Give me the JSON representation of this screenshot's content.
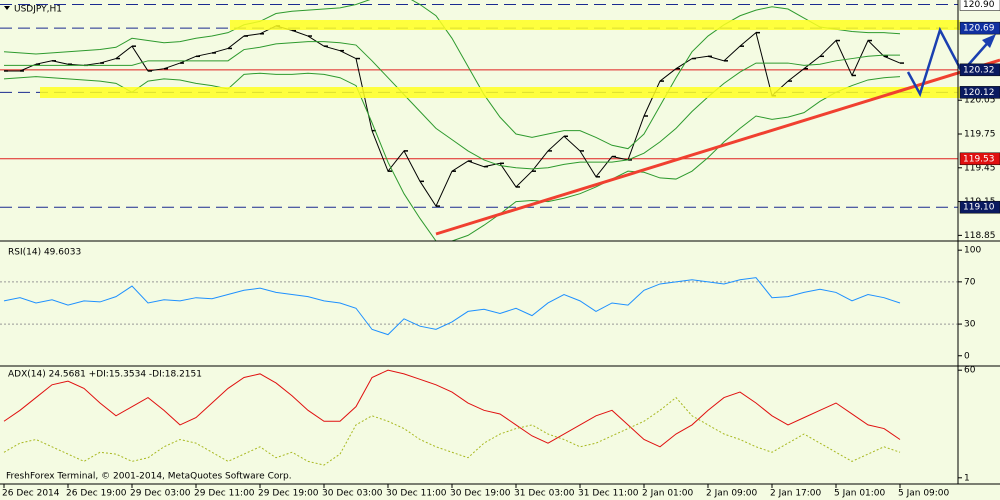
{
  "chart_data": [
    {
      "type": "line",
      "title": "USDJPY,H1",
      "footer": "FreshForex Terminal, © 2001-2014, MetaQuotes Software Corp.",
      "categories": [
        "26 Dec 2014",
        null,
        null,
        null,
        "26 Dec 19:00",
        null,
        null,
        null,
        "29 Dec 03:00",
        null,
        null,
        null,
        "29 Dec 11:00",
        null,
        null,
        null,
        "29 Dec 19:00",
        null,
        null,
        null,
        "30 Dec 03:00",
        null,
        null,
        null,
        "30 Dec 11:00",
        null,
        null,
        null,
        "30 Dec 19:00",
        null,
        null,
        null,
        "31 Dec 03:00",
        null,
        null,
        null,
        "31 Dec 11:00",
        null,
        null,
        null,
        "2 Jan 01:00",
        null,
        null,
        null,
        "2 Jan 09:00",
        null,
        null,
        null,
        "2 Jan 17:00",
        null,
        null,
        null,
        "5 Jan 01:00",
        null,
        null,
        null,
        "5 Jan 09:00"
      ],
      "ylim": [
        118.8,
        120.94
      ],
      "yticks": [
        120.05,
        119.75,
        119.45,
        119.15,
        118.85
      ],
      "levels": [
        {
          "value": 120.9,
          "label": "120.90",
          "color": "#ffffff",
          "text_color": "#000000",
          "style": "dashed"
        },
        {
          "value": 120.69,
          "color": "#1030a0",
          "text_color": "#ffffff",
          "style": "dashed"
        },
        {
          "value": 120.32,
          "color": "#0a1a60",
          "text_color": "#ffffff",
          "style": "solid-red"
        },
        {
          "value": 120.12,
          "color": "#0a1a60",
          "text_color": "#ffffff",
          "style": "dashed"
        },
        {
          "value": 119.53,
          "color": "#e01010",
          "text_color": "#ffffff",
          "style": "solid-red"
        },
        {
          "value": 119.1,
          "label": "119.10",
          "color": "#0a1a60",
          "text_color": "#ffffff",
          "style": "dashed"
        }
      ],
      "series": [
        {
          "color": "#000000",
          "style": "bars",
          "values": [
            120.31,
            120.31,
            120.37,
            120.4,
            120.37,
            120.36,
            120.38,
            120.42,
            120.53,
            120.31,
            120.33,
            120.38,
            120.44,
            120.47,
            120.51,
            120.62,
            120.64,
            120.71,
            120.67,
            120.62,
            120.53,
            120.49,
            120.42,
            119.78,
            119.42,
            119.6,
            119.33,
            119.11,
            119.42,
            119.51,
            119.46,
            119.49,
            119.28,
            119.42,
            119.6,
            119.73,
            119.6,
            119.37,
            119.55,
            119.52,
            119.91,
            120.22,
            120.33,
            120.42,
            120.44,
            120.4,
            120.53,
            120.65,
            120.09,
            120.22,
            120.33,
            120.44,
            120.58,
            120.27,
            120.58,
            120.44,
            120.38
          ]
        },
        {
          "color": "#2e9a2e",
          "style": "solid",
          "values": [
            120.48,
            120.47,
            120.46,
            120.47,
            120.48,
            120.49,
            120.5,
            120.52,
            120.6,
            120.58,
            120.56,
            120.57,
            120.6,
            120.62,
            120.65,
            120.72,
            120.75,
            120.82,
            120.84,
            120.85,
            120.86,
            120.87,
            120.9,
            120.95,
            121.0,
            120.98,
            120.9,
            120.8,
            120.6,
            120.35,
            120.1,
            119.9,
            119.75,
            119.72,
            119.75,
            119.78,
            119.78,
            119.72,
            119.65,
            119.62,
            119.75,
            120.0,
            120.25,
            120.48,
            120.62,
            120.72,
            120.8,
            120.85,
            120.88,
            120.86,
            120.78,
            120.7,
            120.68,
            120.66,
            120.65,
            120.65,
            120.64
          ]
        },
        {
          "color": "#2e9a2e",
          "style": "solid",
          "values": [
            120.36,
            120.36,
            120.36,
            120.36,
            120.36,
            120.36,
            120.36,
            120.36,
            120.36,
            120.4,
            120.4,
            120.4,
            120.4,
            120.4,
            120.4,
            120.5,
            120.52,
            120.55,
            120.56,
            120.57,
            120.57,
            120.56,
            120.54,
            120.4,
            120.25,
            120.1,
            119.95,
            119.8,
            119.7,
            119.6,
            119.52,
            119.47,
            119.45,
            119.44,
            119.45,
            119.48,
            119.5,
            119.5,
            119.5,
            119.52,
            119.58,
            119.68,
            119.8,
            119.95,
            120.08,
            120.2,
            120.3,
            120.38,
            120.38,
            120.38,
            120.36,
            120.37,
            120.4,
            120.42,
            120.44,
            120.45,
            120.45
          ]
        },
        {
          "color": "#2e9a2e",
          "style": "solid",
          "values": [
            120.24,
            120.25,
            120.26,
            120.25,
            120.24,
            120.23,
            120.22,
            120.2,
            120.12,
            120.22,
            120.24,
            120.23,
            120.2,
            120.18,
            120.15,
            120.28,
            120.29,
            120.28,
            120.28,
            120.29,
            120.28,
            120.25,
            120.18,
            119.85,
            119.5,
            119.22,
            119.0,
            118.8,
            118.8,
            118.85,
            118.94,
            119.04,
            119.15,
            119.16,
            119.15,
            119.18,
            119.22,
            119.28,
            119.35,
            119.42,
            119.41,
            119.36,
            119.35,
            119.42,
            119.54,
            119.68,
            119.8,
            119.91,
            119.88,
            119.9,
            119.94,
            120.04,
            120.12,
            120.18,
            120.23,
            120.25,
            120.26
          ]
        }
      ]
    },
    {
      "type": "line",
      "title": "RSI(14) 49.6033",
      "ylim": [
        -9.7,
        108.7
      ],
      "yticks": [
        100,
        70,
        30,
        0
      ],
      "levels": [
        {
          "value": 70,
          "style": "dotted"
        },
        {
          "value": 30,
          "style": "dotted"
        }
      ],
      "series": [
        {
          "color": "#1e90ff",
          "style": "solid",
          "values": [
            52,
            55,
            50,
            53,
            48,
            52,
            51,
            56,
            66,
            50,
            53,
            52,
            55,
            54,
            58,
            62,
            64,
            60,
            58,
            56,
            52,
            50,
            45,
            25,
            20,
            35,
            28,
            25,
            32,
            42,
            44,
            40,
            45,
            38,
            50,
            58,
            52,
            42,
            50,
            48,
            62,
            68,
            70,
            72,
            70,
            68,
            72,
            74,
            55,
            56,
            60,
            63,
            60,
            52,
            58,
            55,
            50
          ]
        }
      ]
    },
    {
      "type": "line",
      "title": "ADX(14) 24.5681 +DI:15.3534 -DI:18.2151",
      "ylim": [
        -2.4,
        62.3
      ],
      "yticks": [
        60,
        1
      ],
      "series": [
        {
          "color": "#e01010",
          "style": "solid",
          "values": [
            32,
            38,
            45,
            52,
            54,
            50,
            42,
            35,
            40,
            45,
            38,
            30,
            34,
            42,
            50,
            56,
            58,
            53,
            46,
            38,
            32,
            32,
            40,
            56,
            60,
            58,
            55,
            52,
            48,
            42,
            38,
            36,
            30,
            24,
            20,
            25,
            30,
            35,
            38,
            30,
            22,
            18,
            25,
            30,
            38,
            45,
            48,
            42,
            35,
            30,
            34,
            38,
            42,
            36,
            30,
            28,
            22
          ]
        },
        {
          "color": "#a8b820",
          "style": "dotted",
          "values": [
            15,
            20,
            22,
            18,
            14,
            10,
            15,
            14,
            10,
            12,
            18,
            22,
            20,
            15,
            10,
            14,
            18,
            12,
            15,
            10,
            8,
            14,
            30,
            35,
            32,
            28,
            22,
            18,
            15,
            12,
            20,
            25,
            28,
            30,
            25,
            22,
            18,
            20,
            24,
            28,
            32,
            38,
            45,
            35,
            30,
            25,
            22,
            18,
            15,
            20,
            25,
            20,
            15,
            10,
            14,
            18,
            15
          ]
        }
      ]
    }
  ]
}
